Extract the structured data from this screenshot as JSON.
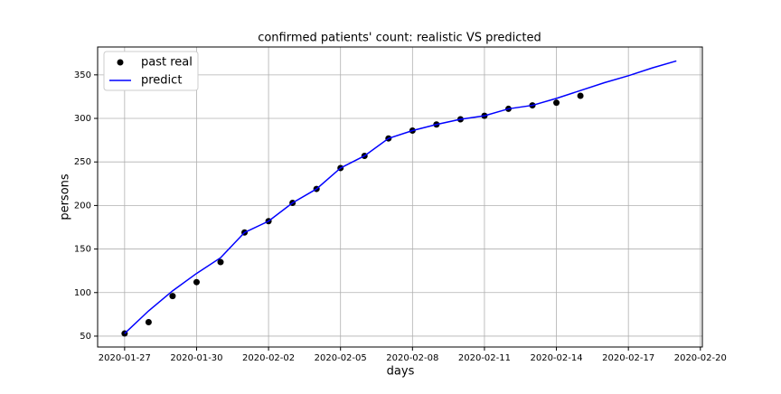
{
  "chart_data": {
    "type": "line",
    "title": "confirmed patients' count: realistic VS predicted",
    "x_label": "days",
    "y_label": "persons",
    "series": [
      {
        "name": "past real",
        "color": "#000000",
        "marker": "circle",
        "line": false,
        "x": [
          "2020-01-27",
          "2020-01-28",
          "2020-01-29",
          "2020-01-30",
          "2020-01-31",
          "2020-02-01",
          "2020-02-02",
          "2020-02-03",
          "2020-02-04",
          "2020-02-05",
          "2020-02-06",
          "2020-02-07",
          "2020-02-08",
          "2020-02-09",
          "2020-02-10",
          "2020-02-11",
          "2020-02-12",
          "2020-02-13",
          "2020-02-14",
          "2020-02-15"
        ],
        "values": [
          53,
          66,
          96,
          112,
          135,
          169,
          182,
          203,
          219,
          243,
          257,
          277,
          286,
          293,
          299,
          303,
          311,
          315,
          318,
          326
        ]
      },
      {
        "name": "predict",
        "color": "#0000ff",
        "marker": "none",
        "line": true,
        "x": [
          "2020-01-27",
          "2020-01-28",
          "2020-01-29",
          "2020-01-30",
          "2020-01-31",
          "2020-02-01",
          "2020-02-02",
          "2020-02-03",
          "2020-02-04",
          "2020-02-05",
          "2020-02-06",
          "2020-02-07",
          "2020-02-08",
          "2020-02-09",
          "2020-02-10",
          "2020-02-11",
          "2020-02-12",
          "2020-02-13",
          "2020-02-14",
          "2020-02-15",
          "2020-02-16",
          "2020-02-17",
          "2020-02-18",
          "2020-02-19"
        ],
        "values": [
          53,
          79,
          102,
          122,
          140,
          169,
          182,
          203,
          219,
          243,
          257,
          277,
          286,
          293,
          299,
          303,
          311,
          315,
          323,
          332,
          341,
          349,
          358,
          366
        ]
      }
    ],
    "xlim": [
      "2020-01-25T21:00",
      "2020-02-20T02:00"
    ],
    "xticks": [
      "2020-01-27",
      "2020-01-30",
      "2020-02-02",
      "2020-02-05",
      "2020-02-08",
      "2020-02-11",
      "2020-02-14",
      "2020-02-17",
      "2020-02-20"
    ],
    "ylim": [
      37.5,
      382
    ],
    "yticks": [
      50,
      100,
      150,
      200,
      250,
      300,
      350
    ],
    "grid": true,
    "legend": "upper-left"
  }
}
